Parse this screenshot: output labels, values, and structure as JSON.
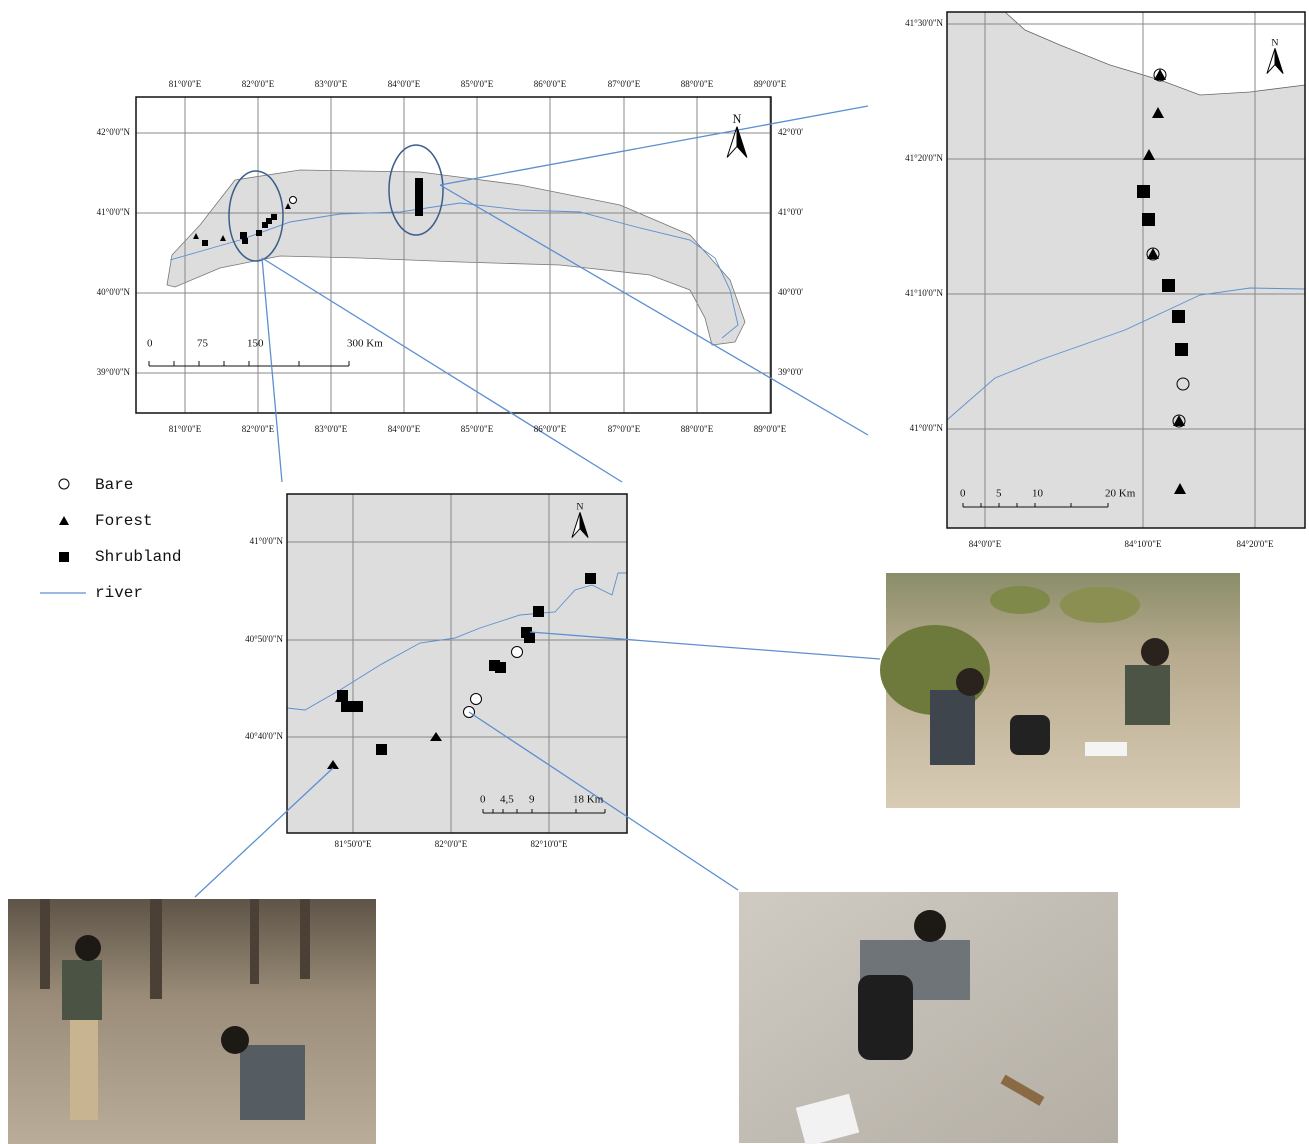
{
  "main_map": {
    "x_labels_top": [
      "81°0'0\"E",
      "82°0'0\"E",
      "83°0'0\"E",
      "84°0'0\"E",
      "85°0'0\"E",
      "86°0'0\"E",
      "87°0'0\"E",
      "88°0'0\"E",
      "89°0'0\"E"
    ],
    "x_labels_bottom": [
      "81°0'0\"E",
      "82°0'0\"E",
      "83°0'0\"E",
      "84°0'0\"E",
      "85°0'0\"E",
      "86°0'0\"E",
      "87°0'0\"E",
      "88°0'0\"E",
      "89°0'0\"E"
    ],
    "y_labels_left": [
      "42°0'0\"N",
      "41°0'0\"N",
      "40°0'0\"N",
      "39°0'0\"N"
    ],
    "y_labels_right": [
      "42°0'0'",
      "41°0'0'",
      "40°0'0'",
      "39°0'0'"
    ],
    "scale": [
      "0",
      "75",
      "150",
      "300 Km"
    ],
    "north": "N"
  },
  "legend": [
    "Bare",
    "Forest",
    "Shrubland",
    "river"
  ],
  "inset_east": {
    "y_labels": [
      "41°30'0\"N",
      "41°20'0\"N",
      "41°10'0\"N",
      "41°0'0\"N"
    ],
    "x_labels": [
      "84°0'0\"E",
      "84°10'0\"E",
      "84°20'0\"E"
    ],
    "scale": [
      "0",
      "5",
      "10",
      "20 Km"
    ],
    "north": "N"
  },
  "inset_west": {
    "y_labels": [
      "41°0'0\"N",
      "40°50'0\"N",
      "40°40'0\"N"
    ],
    "x_labels": [
      "81°50'0\"E",
      "82°0'0\"E",
      "82°10'0\"E"
    ],
    "scale": [
      "0",
      "4,5",
      "9",
      "18 Km"
    ],
    "north": "N"
  }
}
